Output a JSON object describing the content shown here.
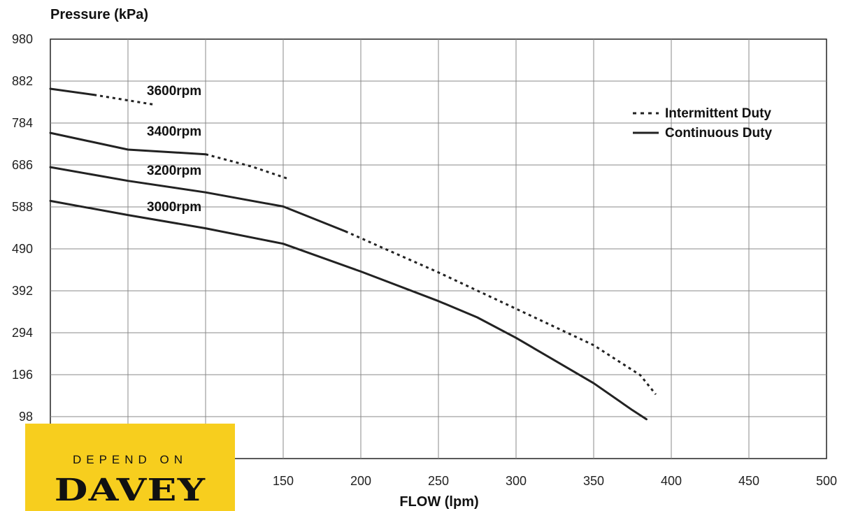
{
  "chart_data": {
    "type": "line",
    "ylabel": "Pressure (kPa)",
    "xlabel": "FLOW (lpm)",
    "xlim": [
      0,
      500
    ],
    "ylim": [
      0,
      980
    ],
    "x_ticks": [
      "150",
      "200",
      "250",
      "300",
      "350",
      "400",
      "450",
      "500"
    ],
    "y_ticks": [
      "98",
      "196",
      "294",
      "392",
      "490",
      "588",
      "686",
      "784",
      "882",
      "980"
    ],
    "grid": true,
    "legend_position": "top-right",
    "legend": [
      {
        "label": "Intermittent Duty",
        "style": "dashed"
      },
      {
        "label": "Continuous Duty",
        "style": "solid"
      }
    ],
    "series": [
      {
        "name": "3600rpm",
        "continuous": [
          [
            0,
            864
          ],
          [
            28,
            850
          ]
        ],
        "intermittent": [
          [
            28,
            850
          ],
          [
            67,
            827
          ]
        ]
      },
      {
        "name": "3400rpm",
        "continuous": [
          [
            0,
            761
          ],
          [
            50,
            722
          ],
          [
            100,
            711
          ]
        ],
        "intermittent": [
          [
            100,
            711
          ],
          [
            130,
            682
          ],
          [
            153,
            654
          ]
        ]
      },
      {
        "name": "3200rpm",
        "continuous": [
          [
            0,
            681
          ],
          [
            50,
            649
          ],
          [
            100,
            622
          ],
          [
            150,
            589
          ],
          [
            170,
            560
          ],
          [
            190,
            531
          ]
        ],
        "intermittent": [
          [
            190,
            531
          ],
          [
            250,
            435
          ],
          [
            300,
            350
          ],
          [
            350,
            265
          ],
          [
            380,
            195
          ],
          [
            390,
            150
          ]
        ]
      },
      {
        "name": "3000rpm",
        "continuous": [
          [
            0,
            602
          ],
          [
            50,
            569
          ],
          [
            100,
            538
          ],
          [
            150,
            502
          ],
          [
            200,
            437
          ],
          [
            250,
            368
          ],
          [
            275,
            330
          ],
          [
            300,
            282
          ],
          [
            350,
            176
          ],
          [
            375,
            113
          ],
          [
            384,
            92
          ]
        ],
        "intermittent": []
      }
    ],
    "colors": {
      "line": "#222222",
      "grid": "#888888",
      "axis": "#222222"
    }
  },
  "logo": {
    "tagline": "DEPEND ON",
    "brand": "DAVEY",
    "background": "#F7CE1E"
  }
}
